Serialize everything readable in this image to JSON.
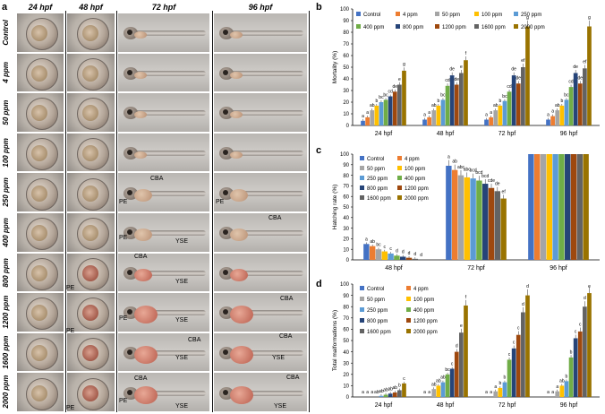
{
  "panel_a": {
    "letter": "a",
    "columns": [
      "24 hpf",
      "48 hpf",
      "72 hpf",
      "96 hpf"
    ],
    "rows": [
      "Control",
      "4 ppm",
      "50 ppm",
      "100 ppm",
      "250 ppm",
      "400 ppm",
      "800 ppm",
      "1200 ppm",
      "1600 ppm",
      "2000 ppm"
    ],
    "annotation_labels": {
      "pe": "PE",
      "cba": "CBA",
      "yse": "YSE"
    }
  },
  "colors": {
    "Control": "#4472c4",
    "4 ppm": "#ed7d31",
    "50 ppm": "#a5a5a5",
    "100 ppm": "#ffc000",
    "250 ppm": "#5b9bd5",
    "400 ppm": "#70ad47",
    "800 ppm": "#264478",
    "1200 ppm": "#9e480e",
    "1600 ppm": "#636363",
    "2000 ppm": "#997300"
  },
  "chart_data": [
    {
      "letter": "b",
      "type": "bar",
      "title": "",
      "xlabel": "",
      "ylabel": "Mortality (%)",
      "ylim": [
        0,
        100
      ],
      "yticks": [
        "0",
        "10",
        "20",
        "30",
        "40",
        "50",
        "60",
        "70",
        "80",
        "90",
        "100"
      ],
      "legend_ncol": 5,
      "categories": [
        "24 hpf",
        "48 hpf",
        "72 hpf",
        "96 hpf"
      ],
      "series": [
        {
          "name": "Control",
          "values": [
            4,
            5,
            5,
            5
          ],
          "labels": [
            "a",
            "a",
            "a",
            "a"
          ]
        },
        {
          "name": "4 ppm",
          "values": [
            7,
            7,
            7,
            8
          ],
          "labels": [
            "a",
            "a",
            "a",
            "a"
          ]
        },
        {
          "name": "50 ppm",
          "values": [
            13,
            13,
            13,
            13
          ],
          "labels": [
            "ab",
            "ab",
            "ab",
            "ab"
          ]
        },
        {
          "name": "100 ppm",
          "values": [
            17,
            17,
            17,
            17
          ],
          "labels": [
            "b",
            "b",
            "b",
            "b"
          ]
        },
        {
          "name": "250 ppm",
          "values": [
            20,
            22,
            21,
            22
          ],
          "labels": [
            "bc",
            "bc",
            "bc",
            "bc"
          ]
        },
        {
          "name": "400 ppm",
          "values": [
            22,
            34,
            29,
            33
          ],
          "labels": [
            "bc",
            "cd",
            "cd",
            "cd"
          ]
        },
        {
          "name": "800 ppm",
          "values": [
            25,
            43,
            43,
            45
          ],
          "labels": [
            "cd",
            "de",
            "de",
            "de"
          ]
        },
        {
          "name": "1200 ppm",
          "values": [
            29,
            35,
            36,
            36
          ],
          "labels": [
            "de",
            "de",
            "de",
            "de"
          ]
        },
        {
          "name": "1600 ppm",
          "values": [
            35,
            45,
            50,
            49
          ],
          "labels": [
            "e",
            "e",
            "ef",
            "ef"
          ]
        },
        {
          "name": "2000 ppm",
          "values": [
            47,
            56,
            85,
            85
          ],
          "labels": [
            "g",
            "f",
            "g",
            "g"
          ]
        }
      ]
    },
    {
      "letter": "c",
      "type": "bar",
      "title": "",
      "xlabel": "",
      "ylabel": "Hatching rate (%)",
      "ylim": [
        0,
        100
      ],
      "yticks": [
        "0",
        "10",
        "20",
        "30",
        "40",
        "50",
        "60",
        "70",
        "80",
        "90",
        "100"
      ],
      "legend_ncol": 2,
      "categories": [
        "48 hpf",
        "72 hpf",
        "96 hpf"
      ],
      "series": [
        {
          "name": "Control",
          "values": [
            15,
            89,
            100
          ],
          "labels": [
            "a",
            "a",
            ""
          ]
        },
        {
          "name": "4 ppm",
          "values": [
            13,
            85,
            100
          ],
          "labels": [
            "ab",
            "ab",
            ""
          ]
        },
        {
          "name": "50 ppm",
          "values": [
            10,
            80,
            100
          ],
          "labels": [
            "bc",
            "abc",
            ""
          ]
        },
        {
          "name": "100 ppm",
          "values": [
            8,
            78,
            100
          ],
          "labels": [
            "c",
            "abc",
            ""
          ]
        },
        {
          "name": "250 ppm",
          "values": [
            6,
            77,
            100
          ],
          "labels": [
            "c",
            "bcd",
            ""
          ]
        },
        {
          "name": "400 ppm",
          "values": [
            4,
            75,
            100
          ],
          "labels": [
            "d",
            "bcd",
            ""
          ]
        },
        {
          "name": "800 ppm",
          "values": [
            3,
            72,
            100
          ],
          "labels": [
            "d",
            "bcd",
            ""
          ]
        },
        {
          "name": "1200 ppm",
          "values": [
            2,
            68,
            100
          ],
          "labels": [
            "d",
            "cde",
            ""
          ]
        },
        {
          "name": "1600 ppm",
          "values": [
            1,
            65,
            100
          ],
          "labels": [
            "d",
            "de",
            ""
          ]
        },
        {
          "name": "2000 ppm",
          "values": [
            0,
            58,
            100
          ],
          "labels": [
            "d",
            "ef",
            ""
          ]
        }
      ]
    },
    {
      "letter": "d",
      "type": "bar",
      "title": "",
      "xlabel": "",
      "ylabel": "Total malformations (%)",
      "ylim": [
        0,
        100
      ],
      "yticks": [
        "0",
        "10",
        "20",
        "30",
        "40",
        "50",
        "60",
        "70",
        "80",
        "90",
        "100"
      ],
      "legend_ncol": 2,
      "categories": [
        "24 hpf",
        "48 hpf",
        "72 hpf",
        "96 hpf"
      ],
      "series": [
        {
          "name": "Control",
          "values": [
            0,
            0,
            0,
            0
          ],
          "labels": [
            "a",
            "a",
            "a",
            "a"
          ]
        },
        {
          "name": "4 ppm",
          "values": [
            0,
            0,
            0,
            0
          ],
          "labels": [
            "a",
            "a",
            "a",
            "a"
          ]
        },
        {
          "name": "50 ppm",
          "values": [
            0,
            7,
            5,
            5
          ],
          "labels": [
            "a",
            "ab",
            "a",
            "a"
          ]
        },
        {
          "name": "100 ppm",
          "values": [
            0,
            10,
            8,
            10
          ],
          "labels": [
            "ab",
            "ab",
            "b",
            "ab"
          ]
        },
        {
          "name": "250 ppm",
          "values": [
            1,
            13,
            13,
            14
          ],
          "labels": [
            "ab",
            "ab",
            "b",
            "b"
          ]
        },
        {
          "name": "400 ppm",
          "values": [
            2,
            20,
            33,
            35
          ],
          "labels": [
            "ab",
            "bc",
            "c",
            "b"
          ]
        },
        {
          "name": "800 ppm",
          "values": [
            3,
            25,
            43,
            52
          ],
          "labels": [
            "ab",
            "c",
            "c",
            "c"
          ]
        },
        {
          "name": "1200 ppm",
          "values": [
            4,
            40,
            55,
            58
          ],
          "labels": [
            "ab",
            "d",
            "c",
            "c"
          ]
        },
        {
          "name": "1600 ppm",
          "values": [
            6,
            57,
            75,
            80
          ],
          "labels": [
            "b",
            "e",
            "d",
            "d"
          ]
        },
        {
          "name": "2000 ppm",
          "values": [
            12,
            81,
            90,
            92
          ],
          "labels": [
            "c",
            "f",
            "d",
            "e"
          ]
        }
      ]
    }
  ]
}
